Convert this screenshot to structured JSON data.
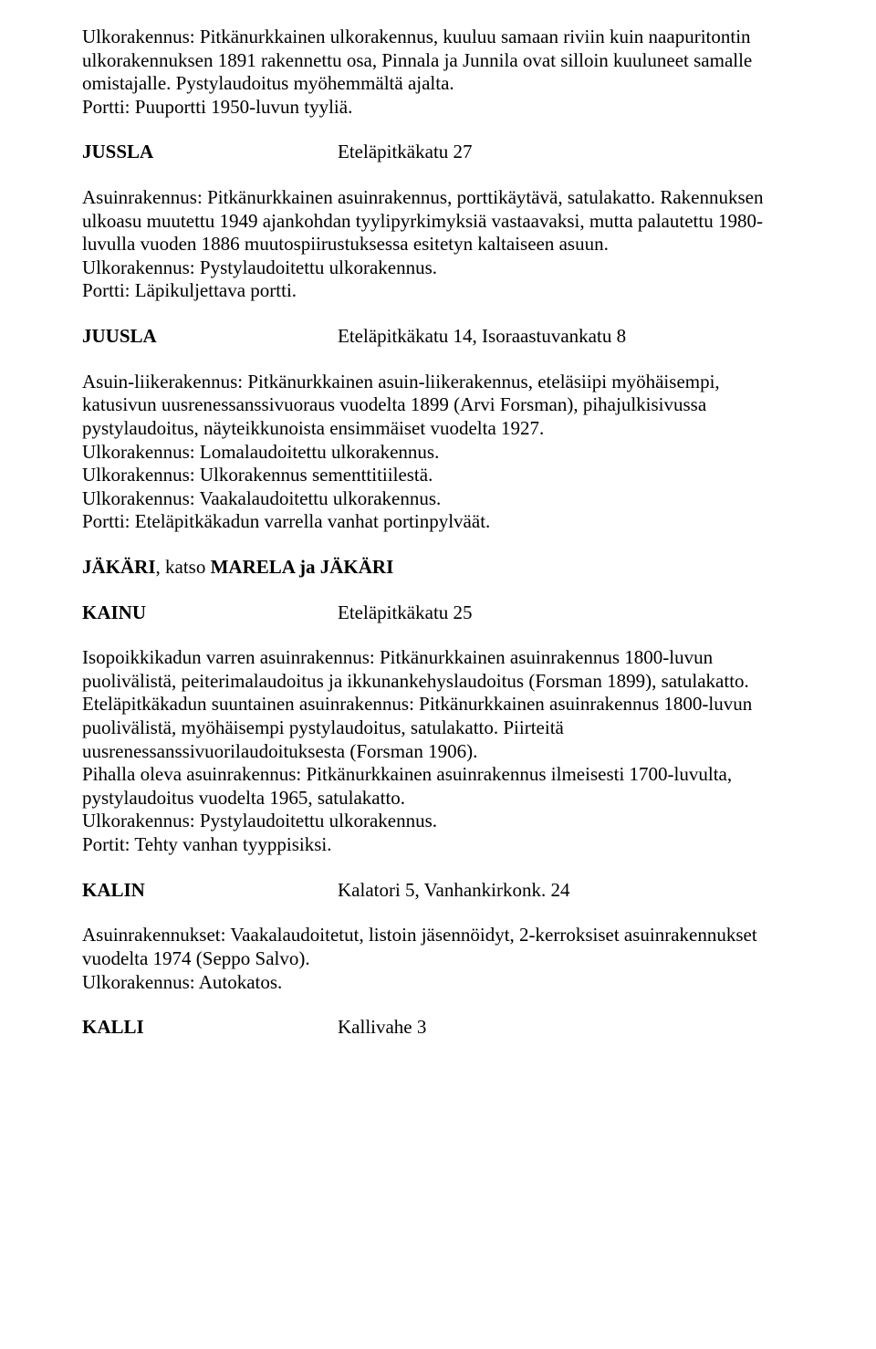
{
  "intro": {
    "p1": "Ulkorakennus: Pitkänurkkainen ulkorakennus, kuuluu samaan riviin kuin naapuritontin ulkorakennuksen 1891 rakennettu osa, Pinnala ja Junnila ovat silloin kuuluneet samalle omistajalle. Pystylaudoitus myöhemmältä ajalta.",
    "p2": "Portti: Puuportti 1950-luvun tyyliä."
  },
  "jussla": {
    "name": "JUSSLA",
    "addr": "Eteläpitkäkatu 27",
    "body": "Asuinrakennus: Pitkänurkkainen asuinrakennus, porttikäytävä, satulakatto. Rakennuksen ulkoasu muutettu 1949 ajankohdan tyylipyrkimyksiä vastaavaksi, mutta palautettu 1980-luvulla vuoden 1886 muutospiirustuksessa esitetyn kaltaiseen asuun.",
    "body2": "Ulkorakennus: Pystylaudoitettu ulkorakennus.",
    "body3": "Portti: Läpikuljettava portti."
  },
  "juusla": {
    "name": "JUUSLA",
    "addr": "Eteläpitkäkatu 14, Isoraastuvankatu 8",
    "b1": "Asuin-liikerakennus: Pitkänurkkainen asuin-liikerakennus, eteläsiipi myöhäisempi, katusivun uusrenessanssivuoraus vuodelta 1899 (Arvi Forsman), pihajulkisivussa pystylaudoitus, näyteikkunoista ensimmäiset vuodelta 1927.",
    "b2": "Ulkorakennus: Lomalaudoitettu ulkorakennus.",
    "b3": "Ulkorakennus: Ulkorakennus sementtitiilestä.",
    "b4": "Ulkorakennus: Vaakalaudoitettu ulkorakennus.",
    "b5": "Portti: Eteläpitkäkadun varrella vanhat portinpylväät."
  },
  "jakari": {
    "bold1": "JÄKÄRI",
    "plain": ", katso ",
    "bold2": "MARELA ja JÄKÄRI"
  },
  "kainu": {
    "name": "KAINU",
    "addr": "Eteläpitkäkatu 25",
    "b1": "Isopoikkikadun varren asuinrakennus: Pitkänurkkainen asuinrakennus 1800-luvun puolivälistä, peiterimalaudoitus ja ikkunankehyslaudoitus (Forsman 1899), satulakatto.",
    "b2": "Eteläpitkäkadun suuntainen asuinrakennus: Pitkänurkkainen asuinrakennus 1800-luvun puolivälistä, myöhäisempi pystylaudoitus, satulakatto. Piirteitä uusrenessanssivuorilaudoituksesta (Forsman 1906).",
    "b3": "Pihalla oleva asuinrakennus: Pitkänurkkainen asuinrakennus ilmeisesti 1700-luvulta, pystylaudoitus vuodelta 1965, satulakatto.",
    "b4": "Ulkorakennus: Pystylaudoitettu ulkorakennus.",
    "b5": "Portit: Tehty vanhan tyyppisiksi."
  },
  "kalin": {
    "name": "KALIN",
    "addr": "Kalatori 5, Vanhankirkonk. 24",
    "b1": "Asuinrakennukset: Vaakalaudoitetut, listoin jäsennöidyt, 2-kerroksiset asuinrakennukset vuodelta 1974 (Seppo Salvo).",
    "b2": "Ulkorakennus: Autokatos."
  },
  "kalli": {
    "name": "KALLI",
    "addr": "Kallivahe 3"
  }
}
